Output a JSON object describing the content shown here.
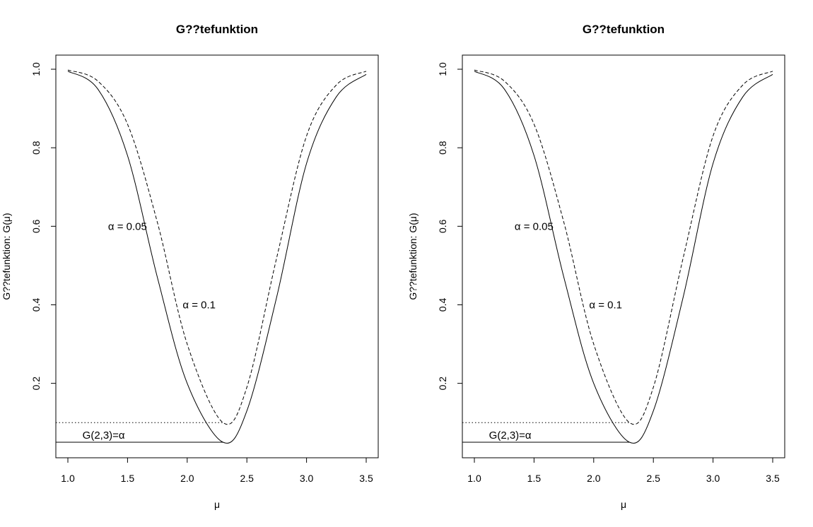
{
  "chart_data": [
    {
      "type": "line",
      "title": "G??tefunktion",
      "xlabel": "μ",
      "ylabel": "G??tefunktion:  G(μ)",
      "xlim": [
        1.0,
        3.5
      ],
      "ylim": [
        0.05,
        1.0
      ],
      "xticks": [
        "1.0",
        "1.5",
        "2.0",
        "2.5",
        "3.0",
        "3.5"
      ],
      "yticks": [
        "0.2",
        "0.4",
        "0.6",
        "0.8",
        "1.0"
      ],
      "grid": false,
      "series": [
        {
          "style": "solid",
          "x": [
            1.0,
            1.25,
            1.5,
            1.75,
            2.0,
            2.3,
            2.5,
            2.75,
            3.0,
            3.25,
            3.5
          ],
          "y": [
            0.995,
            0.95,
            0.78,
            0.47,
            0.2,
            0.05,
            0.13,
            0.42,
            0.76,
            0.93,
            0.987
          ]
        },
        {
          "style": "dashed",
          "x": [
            1.0,
            1.25,
            1.5,
            1.75,
            2.0,
            2.3,
            2.5,
            2.75,
            3.0,
            3.25,
            3.5
          ],
          "y": [
            0.998,
            0.97,
            0.86,
            0.61,
            0.3,
            0.1,
            0.19,
            0.52,
            0.83,
            0.96,
            0.995
          ]
        }
      ],
      "hlines": [
        {
          "y": 0.05,
          "style": "solid",
          "x_end": 2.3
        },
        {
          "y": 0.1,
          "style": "dotted",
          "x_end": 2.3
        }
      ],
      "annotations": [
        {
          "text": "α = 0.05",
          "x": 1.5,
          "y": 0.6
        },
        {
          "text": "α = 0.1",
          "x": 2.1,
          "y": 0.4
        },
        {
          "text": "G(2,3)=α",
          "x": 1.3,
          "y": 0.068
        }
      ]
    },
    {
      "type": "line",
      "title": "G??tefunktion",
      "xlabel": "μ",
      "ylabel": "G??tefunktion:  G(μ)",
      "xlim": [
        1.0,
        3.5
      ],
      "ylim": [
        0.05,
        1.0
      ],
      "xticks": [
        "1.0",
        "1.5",
        "2.0",
        "2.5",
        "3.0",
        "3.5"
      ],
      "yticks": [
        "0.2",
        "0.4",
        "0.6",
        "0.8",
        "1.0"
      ],
      "grid": false,
      "series": [
        {
          "style": "solid",
          "x": [
            1.0,
            1.25,
            1.5,
            1.75,
            2.0,
            2.3,
            2.5,
            2.75,
            3.0,
            3.25,
            3.5
          ],
          "y": [
            0.995,
            0.95,
            0.78,
            0.47,
            0.2,
            0.05,
            0.13,
            0.42,
            0.76,
            0.93,
            0.987
          ]
        },
        {
          "style": "dashed",
          "x": [
            1.0,
            1.25,
            1.5,
            1.75,
            2.0,
            2.3,
            2.5,
            2.75,
            3.0,
            3.25,
            3.5
          ],
          "y": [
            0.998,
            0.97,
            0.86,
            0.61,
            0.3,
            0.1,
            0.19,
            0.52,
            0.83,
            0.96,
            0.995
          ]
        }
      ],
      "hlines": [
        {
          "y": 0.05,
          "style": "solid",
          "x_end": 2.3
        },
        {
          "y": 0.1,
          "style": "dotted",
          "x_end": 2.3
        }
      ],
      "annotations": [
        {
          "text": "α = 0.05",
          "x": 1.5,
          "y": 0.6
        },
        {
          "text": "α = 0.1",
          "x": 2.1,
          "y": 0.4
        },
        {
          "text": "G(2,3)=α",
          "x": 1.3,
          "y": 0.068
        }
      ]
    }
  ]
}
